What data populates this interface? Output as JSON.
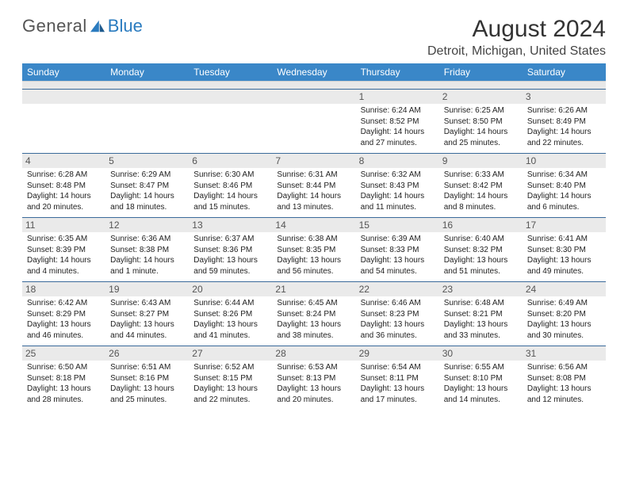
{
  "brand": {
    "general": "General",
    "blue": "Blue"
  },
  "title": "August 2024",
  "location": "Detroit, Michigan, United States",
  "colors": {
    "header_bg": "#3a87c8",
    "rule": "#3a6a9a",
    "daynum_bg": "#eaeaea",
    "logo_blue": "#2a7bbf"
  },
  "weekdays": [
    "Sunday",
    "Monday",
    "Tuesday",
    "Wednesday",
    "Thursday",
    "Friday",
    "Saturday"
  ],
  "weeks": [
    [
      null,
      null,
      null,
      null,
      {
        "n": "1",
        "sr": "6:24 AM",
        "ss": "8:52 PM",
        "dl": "14 hours and 27 minutes."
      },
      {
        "n": "2",
        "sr": "6:25 AM",
        "ss": "8:50 PM",
        "dl": "14 hours and 25 minutes."
      },
      {
        "n": "3",
        "sr": "6:26 AM",
        "ss": "8:49 PM",
        "dl": "14 hours and 22 minutes."
      }
    ],
    [
      {
        "n": "4",
        "sr": "6:28 AM",
        "ss": "8:48 PM",
        "dl": "14 hours and 20 minutes."
      },
      {
        "n": "5",
        "sr": "6:29 AM",
        "ss": "8:47 PM",
        "dl": "14 hours and 18 minutes."
      },
      {
        "n": "6",
        "sr": "6:30 AM",
        "ss": "8:46 PM",
        "dl": "14 hours and 15 minutes."
      },
      {
        "n": "7",
        "sr": "6:31 AM",
        "ss": "8:44 PM",
        "dl": "14 hours and 13 minutes."
      },
      {
        "n": "8",
        "sr": "6:32 AM",
        "ss": "8:43 PM",
        "dl": "14 hours and 11 minutes."
      },
      {
        "n": "9",
        "sr": "6:33 AM",
        "ss": "8:42 PM",
        "dl": "14 hours and 8 minutes."
      },
      {
        "n": "10",
        "sr": "6:34 AM",
        "ss": "8:40 PM",
        "dl": "14 hours and 6 minutes."
      }
    ],
    [
      {
        "n": "11",
        "sr": "6:35 AM",
        "ss": "8:39 PM",
        "dl": "14 hours and 4 minutes."
      },
      {
        "n": "12",
        "sr": "6:36 AM",
        "ss": "8:38 PM",
        "dl": "14 hours and 1 minute."
      },
      {
        "n": "13",
        "sr": "6:37 AM",
        "ss": "8:36 PM",
        "dl": "13 hours and 59 minutes."
      },
      {
        "n": "14",
        "sr": "6:38 AM",
        "ss": "8:35 PM",
        "dl": "13 hours and 56 minutes."
      },
      {
        "n": "15",
        "sr": "6:39 AM",
        "ss": "8:33 PM",
        "dl": "13 hours and 54 minutes."
      },
      {
        "n": "16",
        "sr": "6:40 AM",
        "ss": "8:32 PM",
        "dl": "13 hours and 51 minutes."
      },
      {
        "n": "17",
        "sr": "6:41 AM",
        "ss": "8:30 PM",
        "dl": "13 hours and 49 minutes."
      }
    ],
    [
      {
        "n": "18",
        "sr": "6:42 AM",
        "ss": "8:29 PM",
        "dl": "13 hours and 46 minutes."
      },
      {
        "n": "19",
        "sr": "6:43 AM",
        "ss": "8:27 PM",
        "dl": "13 hours and 44 minutes."
      },
      {
        "n": "20",
        "sr": "6:44 AM",
        "ss": "8:26 PM",
        "dl": "13 hours and 41 minutes."
      },
      {
        "n": "21",
        "sr": "6:45 AM",
        "ss": "8:24 PM",
        "dl": "13 hours and 38 minutes."
      },
      {
        "n": "22",
        "sr": "6:46 AM",
        "ss": "8:23 PM",
        "dl": "13 hours and 36 minutes."
      },
      {
        "n": "23",
        "sr": "6:48 AM",
        "ss": "8:21 PM",
        "dl": "13 hours and 33 minutes."
      },
      {
        "n": "24",
        "sr": "6:49 AM",
        "ss": "8:20 PM",
        "dl": "13 hours and 30 minutes."
      }
    ],
    [
      {
        "n": "25",
        "sr": "6:50 AM",
        "ss": "8:18 PM",
        "dl": "13 hours and 28 minutes."
      },
      {
        "n": "26",
        "sr": "6:51 AM",
        "ss": "8:16 PM",
        "dl": "13 hours and 25 minutes."
      },
      {
        "n": "27",
        "sr": "6:52 AM",
        "ss": "8:15 PM",
        "dl": "13 hours and 22 minutes."
      },
      {
        "n": "28",
        "sr": "6:53 AM",
        "ss": "8:13 PM",
        "dl": "13 hours and 20 minutes."
      },
      {
        "n": "29",
        "sr": "6:54 AM",
        "ss": "8:11 PM",
        "dl": "13 hours and 17 minutes."
      },
      {
        "n": "30",
        "sr": "6:55 AM",
        "ss": "8:10 PM",
        "dl": "13 hours and 14 minutes."
      },
      {
        "n": "31",
        "sr": "6:56 AM",
        "ss": "8:08 PM",
        "dl": "13 hours and 12 minutes."
      }
    ]
  ],
  "labels": {
    "sunrise": "Sunrise:",
    "sunset": "Sunset:",
    "daylight": "Daylight:"
  }
}
